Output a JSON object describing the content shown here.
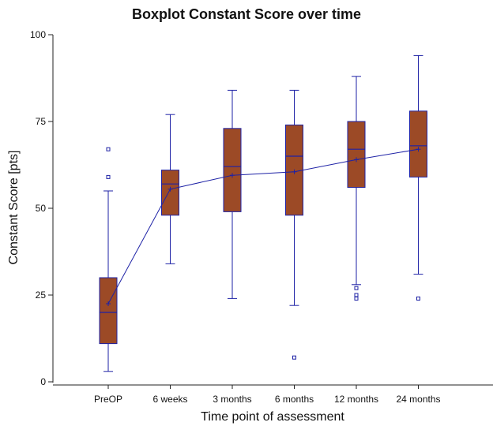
{
  "chart_data": {
    "type": "boxplot",
    "title": "Boxplot Constant Score over time",
    "xlabel": "Time point of assessment",
    "ylabel": "Constant Score [pts]",
    "ylim": [
      0,
      100
    ],
    "yticks": [
      0,
      25,
      50,
      75,
      100
    ],
    "categories": [
      "PreOP",
      "6 weeks",
      "3 months",
      "6 months",
      "12 months",
      "24 months"
    ],
    "boxes": [
      {
        "whisker_low": 3,
        "q1": 11,
        "median": 20,
        "q3": 30,
        "whisker_high": 55,
        "mean": 22.5,
        "outliers": [
          59,
          67
        ]
      },
      {
        "whisker_low": 34,
        "q1": 48,
        "median": 57,
        "q3": 61,
        "whisker_high": 77,
        "mean": 55.5,
        "outliers": []
      },
      {
        "whisker_low": 24,
        "q1": 49,
        "median": 62,
        "q3": 73,
        "whisker_high": 84,
        "mean": 59.5,
        "outliers": []
      },
      {
        "whisker_low": 22,
        "q1": 48,
        "median": 65,
        "q3": 74,
        "whisker_high": 84,
        "mean": 60.5,
        "outliers": [
          7
        ]
      },
      {
        "whisker_low": 28,
        "q1": 56,
        "median": 67,
        "q3": 75,
        "whisker_high": 88,
        "mean": 64,
        "outliers": [
          24,
          25,
          27
        ]
      },
      {
        "whisker_low": 31,
        "q1": 59,
        "median": 68,
        "q3": 78,
        "whisker_high": 94,
        "mean": 67,
        "outliers": [
          24
        ]
      }
    ],
    "mean_line": true,
    "colors": {
      "box_fill": "#9c4a26",
      "stroke": "#1e22a6",
      "axis": "#222222"
    },
    "grid": false,
    "legend": "none"
  }
}
